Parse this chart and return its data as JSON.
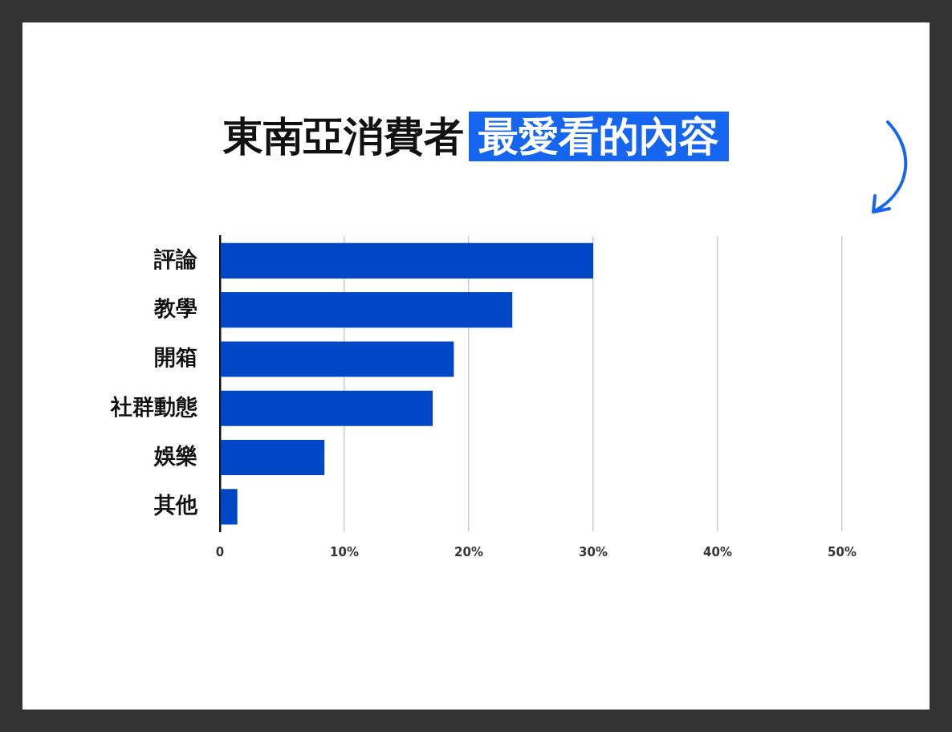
{
  "chart_data": {
    "type": "bar",
    "orientation": "horizontal",
    "title": "東南亞消費者",
    "subtitle": "最愛看的內容",
    "categories": [
      "評論",
      "教學",
      "開箱",
      "社群動態",
      "娛樂",
      "其他"
    ],
    "values": [
      30,
      23.5,
      18.8,
      17.1,
      8.4,
      1.4
    ],
    "color": "#0047c8",
    "xlim": [
      0,
      50
    ],
    "xticks": [
      0,
      {
        "value": 10,
        "label": "10%"
      },
      {
        "value": 20,
        "label": "20%"
      },
      {
        "value": 30,
        "label": "30%"
      },
      {
        "value": 40,
        "label": "40%"
      },
      {
        "value": 50,
        "label": "50%"
      }
    ],
    "grid": "x",
    "legend": false
  }
}
